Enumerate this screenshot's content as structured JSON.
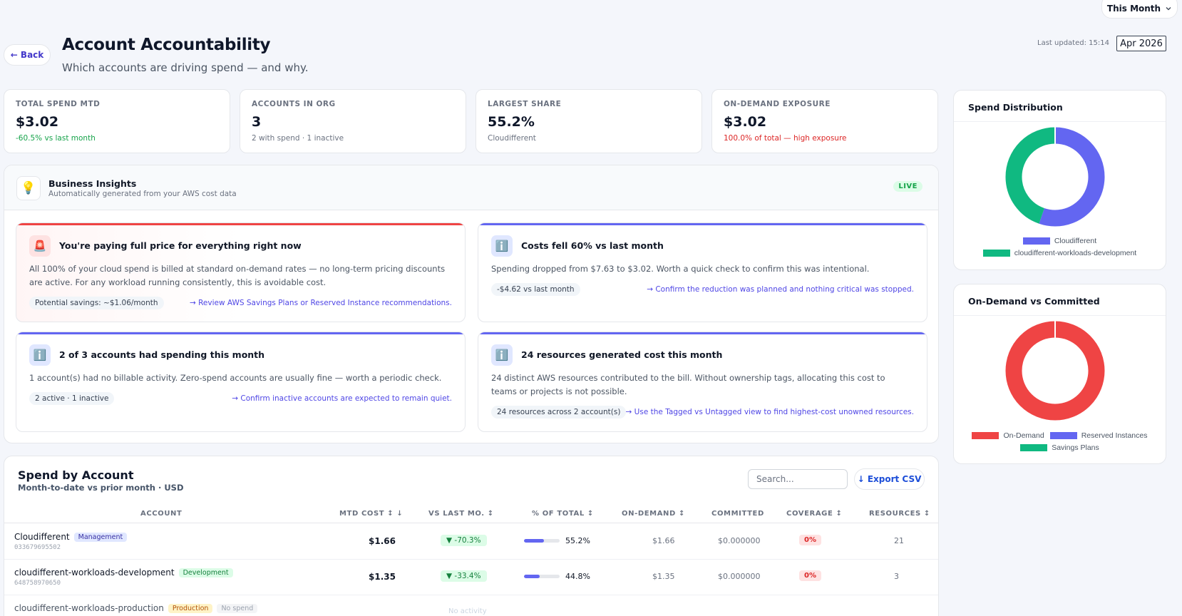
{
  "header": {
    "period": "This Month",
    "back_label": "← Back",
    "title": "Account Accountability",
    "subtitle": "Which accounts are driving spend — and why.",
    "last_updated": "Last updated: 15:14",
    "month": "Apr 2026"
  },
  "kpis": [
    {
      "label": "TOTAL SPEND MTD",
      "value": "$3.02",
      "note": "-60.5% vs last month",
      "note_color": "#16a34a"
    },
    {
      "label": "ACCOUNTS IN ORG",
      "value": "3",
      "note": "2 with spend · 1 inactive",
      "note_color": "#6b7280"
    },
    {
      "label": "LARGEST SHARE",
      "value": "55.2%",
      "note": "Cloudifferent",
      "note_color": "#6b7280"
    },
    {
      "label": "ON-DEMAND EXPOSURE",
      "value": "$3.02",
      "note": "100.0% of total — high exposure",
      "note_color": "#dc2626"
    }
  ],
  "insights": {
    "title": "Business Insights",
    "subtitle": "Automatically generated from your AWS cost data",
    "badge": "LIVE",
    "cards": [
      {
        "icon": "siren-icon",
        "title": "You're paying full price for everything right now",
        "body": "All 100% of your cloud spend is billed at standard on-demand rates — no long-term pricing discounts are active. For any workload running consistently, this is avoidable cost.",
        "chip": "Potential savings: ~$1.06/month",
        "link": "→ Review AWS Savings Plans or Reserved Instance recommendations."
      },
      {
        "icon": "info-icon",
        "title": "Costs fell 60% vs last month",
        "body": "Spending dropped from $7.63 to $3.02. Worth a quick check to confirm this was intentional.",
        "chip": "-$4.62 vs last month",
        "link": "→ Confirm the reduction was planned and nothing critical was stopped."
      },
      {
        "icon": "info-icon",
        "title": "2 of 3 accounts had spending this month",
        "body": "1 account(s) had no billable activity. Zero-spend accounts are usually fine — worth a periodic check.",
        "chip": "2 active · 1 inactive",
        "link": "→ Confirm inactive accounts are expected to remain quiet."
      },
      {
        "icon": "info-icon",
        "title": "24 resources generated cost this month",
        "body": "24 distinct AWS resources contributed to the bill. Without ownership tags, allocating this cost to teams or projects is not possible.",
        "chip": "24 resources across 2 account(s)",
        "link": "→ Use the Tagged vs Untagged view to find highest-cost unowned resources."
      }
    ]
  },
  "spend_distribution": {
    "title": "Spend Distribution",
    "legend": [
      {
        "name": "Cloudifferent",
        "color": "#6366f1",
        "share": 55.2
      },
      {
        "name": "cloudifferent-workloads-development",
        "color": "#10b981",
        "share": 44.8
      }
    ]
  },
  "ondemand_committed": {
    "title": "On-Demand vs Committed",
    "legend": [
      {
        "name": "On-Demand",
        "color": "#ef4444",
        "share": 100
      },
      {
        "name": "Reserved Instances",
        "color": "#6366f1",
        "share": 0
      },
      {
        "name": "Savings Plans",
        "color": "#10b981",
        "share": 0
      }
    ]
  },
  "table": {
    "title": "Spend by Account",
    "subtitle": "Month-to-date vs prior month · USD",
    "search_placeholder": "Search...",
    "export_label": "↓ Export CSV",
    "columns": [
      "ACCOUNT",
      "MTD COST ↕ ↓",
      "VS LAST MO. ↕",
      "% OF TOTAL ↕",
      "ON-DEMAND ↕",
      "COMMITTED",
      "COVERAGE ↕",
      "RESOURCES ↕"
    ],
    "rows": [
      {
        "name": "Cloudifferent",
        "tag": "Management",
        "id": "033679695502",
        "mtd": "$1.66",
        "vs": "▼ -70.3%",
        "pct": 55.2,
        "pct_label": "55.2%",
        "ondemand": "$1.66",
        "committed": "$0.000000",
        "coverage": "0%",
        "resources": "21"
      },
      {
        "name": "cloudifferent-workloads-development",
        "tag": "Development",
        "id": "648758970650",
        "mtd": "$1.35",
        "vs": "▼ -33.4%",
        "pct": 44.8,
        "pct_label": "44.8%",
        "ondemand": "$1.35",
        "committed": "$0.000000",
        "coverage": "0%",
        "resources": "3"
      },
      {
        "name": "cloudifferent-workloads-production",
        "tag": "Production",
        "tag2": "No spend",
        "activity": "No activity"
      }
    ]
  }
}
